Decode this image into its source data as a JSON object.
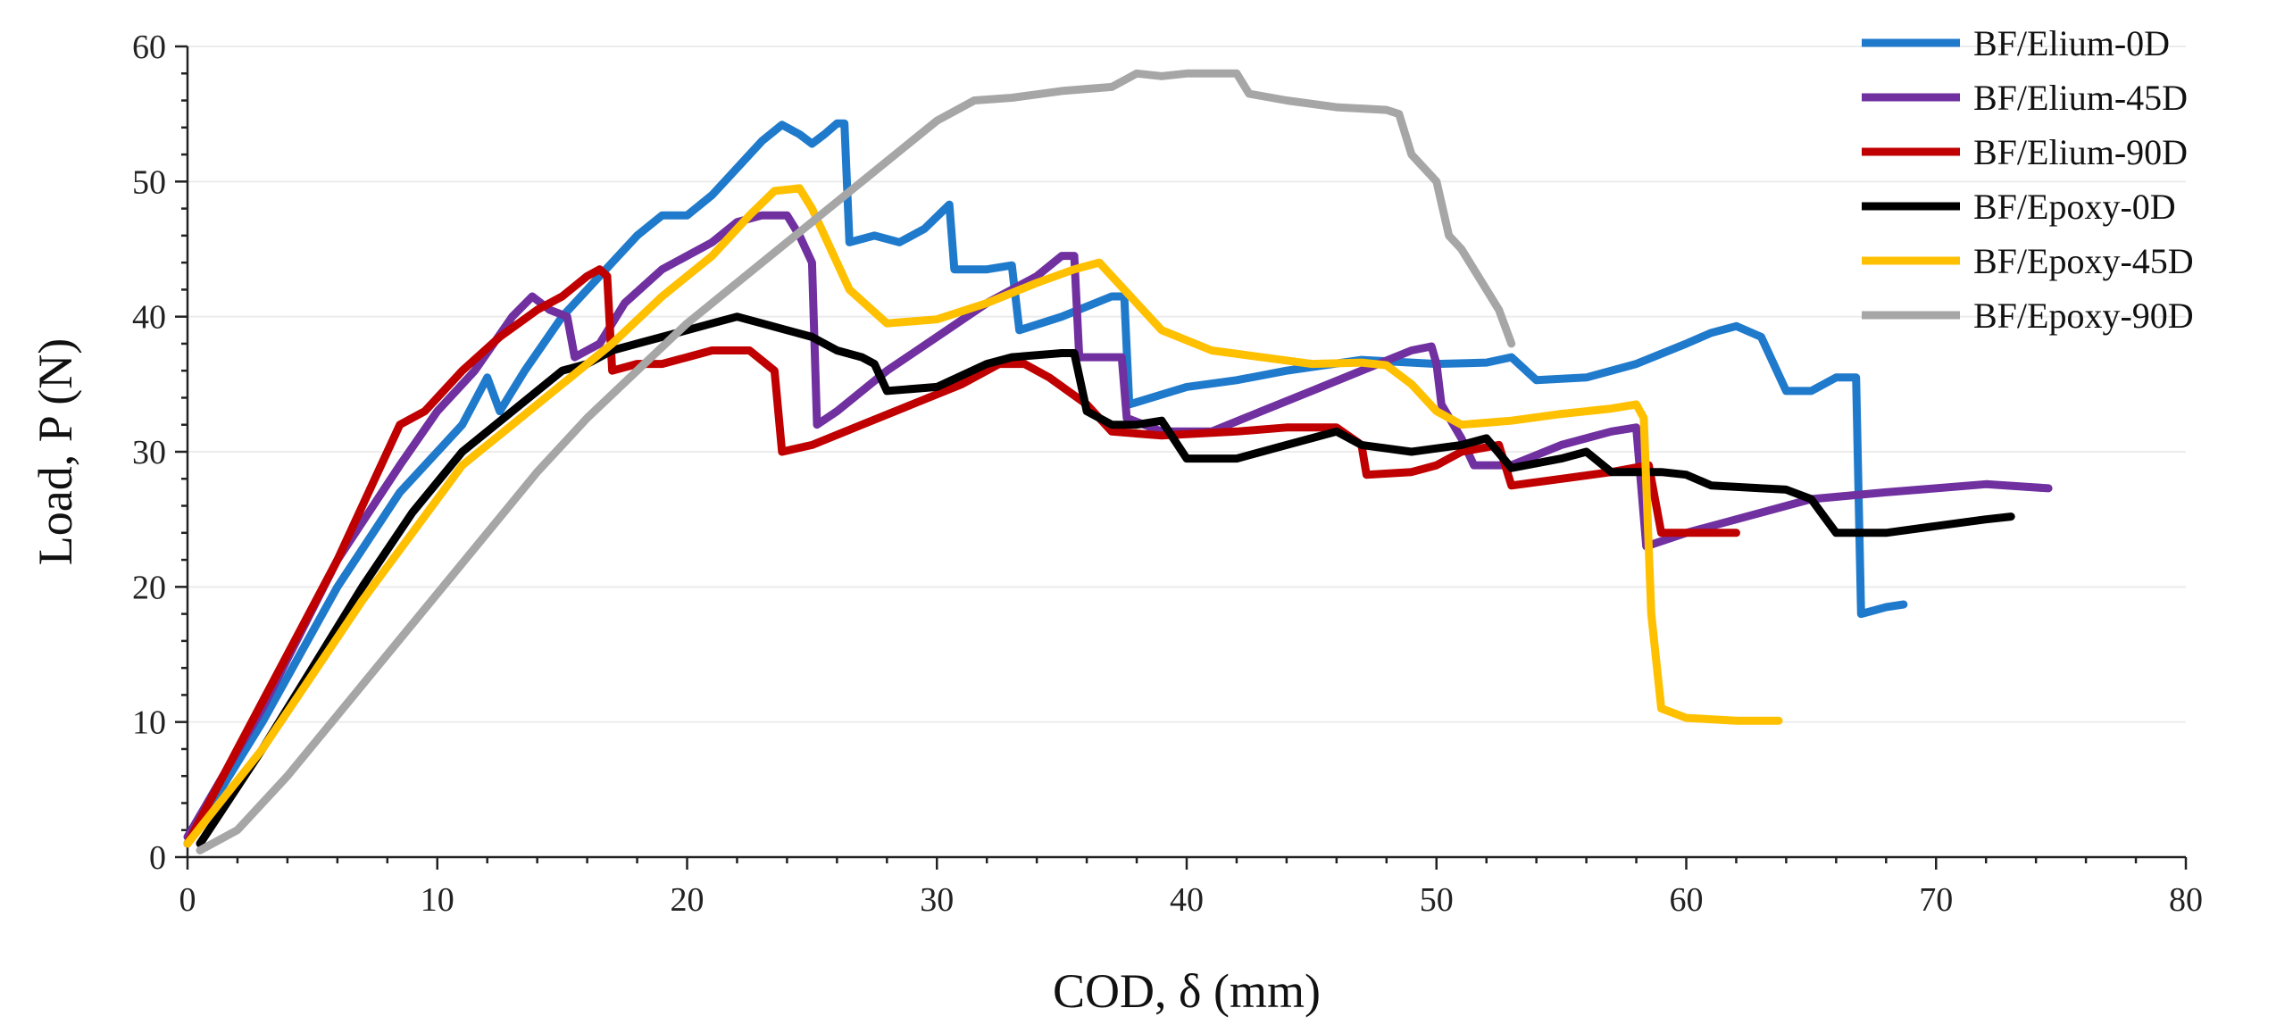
{
  "chart_data": {
    "type": "line",
    "title": "",
    "xlabel": "COD, δ (mm)",
    "ylabel": "Load, P (N)",
    "xlim": [
      0,
      80
    ],
    "ylim": [
      0,
      60
    ],
    "x_ticks": [
      0,
      10,
      20,
      30,
      40,
      50,
      60,
      70,
      80
    ],
    "y_ticks": [
      0,
      10,
      20,
      30,
      40,
      50,
      60
    ],
    "grid": "horizontal",
    "legend_position": "top-right",
    "series": [
      {
        "name": "BF/Elium-0D",
        "color": "#1f7acc",
        "points": [
          [
            0,
            1
          ],
          [
            3,
            10
          ],
          [
            6,
            20
          ],
          [
            8.5,
            27
          ],
          [
            10,
            30
          ],
          [
            11,
            32
          ],
          [
            12,
            35.5
          ],
          [
            12.5,
            33
          ],
          [
            13.5,
            36
          ],
          [
            15,
            40
          ],
          [
            17,
            44
          ],
          [
            18,
            46
          ],
          [
            19,
            47.5
          ],
          [
            20,
            47.5
          ],
          [
            21,
            49
          ],
          [
            22,
            51
          ],
          [
            23,
            53
          ],
          [
            23.8,
            54.2
          ],
          [
            24.5,
            53.5
          ],
          [
            25,
            52.8
          ],
          [
            25.5,
            53.5
          ],
          [
            26,
            54.3
          ],
          [
            26.3,
            54.3
          ],
          [
            26.5,
            45.5
          ],
          [
            27.5,
            46
          ],
          [
            28.5,
            45.5
          ],
          [
            29.5,
            46.5
          ],
          [
            30.5,
            48.3
          ],
          [
            30.7,
            43.5
          ],
          [
            32,
            43.5
          ],
          [
            33,
            43.8
          ],
          [
            33.3,
            39
          ],
          [
            35,
            40
          ],
          [
            37,
            41.5
          ],
          [
            37.5,
            41.5
          ],
          [
            37.7,
            33.5
          ],
          [
            40,
            34.8
          ],
          [
            42,
            35.3
          ],
          [
            44,
            36
          ],
          [
            47,
            36.8
          ],
          [
            50,
            36.5
          ],
          [
            52,
            36.6
          ],
          [
            53,
            37
          ],
          [
            54,
            35.3
          ],
          [
            56,
            35.5
          ],
          [
            58,
            36.5
          ],
          [
            60,
            38
          ],
          [
            61,
            38.8
          ],
          [
            62,
            39.3
          ],
          [
            63,
            38.5
          ],
          [
            63.5,
            36.5
          ],
          [
            64,
            34.5
          ],
          [
            65,
            34.5
          ],
          [
            66,
            35.5
          ],
          [
            66.8,
            35.5
          ],
          [
            67,
            18
          ],
          [
            68,
            18.5
          ],
          [
            68.7,
            18.7
          ]
        ]
      },
      {
        "name": "BF/Elium-45D",
        "color": "#7030a0",
        "points": [
          [
            0,
            1.5
          ],
          [
            3,
            11
          ],
          [
            6,
            22
          ],
          [
            8.5,
            29
          ],
          [
            10,
            33
          ],
          [
            11.5,
            36
          ],
          [
            13,
            40
          ],
          [
            13.8,
            41.5
          ],
          [
            14.5,
            40.5
          ],
          [
            15.2,
            40
          ],
          [
            15.5,
            37
          ],
          [
            16.5,
            38
          ],
          [
            17.5,
            41
          ],
          [
            19,
            43.5
          ],
          [
            21,
            45.5
          ],
          [
            22,
            47
          ],
          [
            23,
            47.5
          ],
          [
            24,
            47.5
          ],
          [
            24.5,
            46
          ],
          [
            25,
            44
          ],
          [
            25.2,
            32
          ],
          [
            26,
            33
          ],
          [
            28,
            36
          ],
          [
            30,
            38.5
          ],
          [
            32,
            41
          ],
          [
            34,
            43
          ],
          [
            35,
            44.5
          ],
          [
            35.5,
            44.5
          ],
          [
            35.7,
            37
          ],
          [
            37,
            37
          ],
          [
            37.4,
            37
          ],
          [
            37.6,
            32.5
          ],
          [
            39,
            31.5
          ],
          [
            41,
            31.5
          ],
          [
            43,
            33
          ],
          [
            45,
            34.5
          ],
          [
            47,
            36
          ],
          [
            49,
            37.5
          ],
          [
            49.8,
            37.8
          ],
          [
            50,
            36.5
          ],
          [
            50.2,
            33.5
          ],
          [
            51,
            31
          ],
          [
            51.5,
            29
          ],
          [
            53,
            29
          ],
          [
            55,
            30.5
          ],
          [
            57,
            31.5
          ],
          [
            58,
            31.8
          ],
          [
            58.4,
            23
          ],
          [
            60,
            24
          ],
          [
            62,
            25
          ],
          [
            65,
            26.5
          ],
          [
            68,
            27
          ],
          [
            70,
            27.3
          ],
          [
            72,
            27.6
          ],
          [
            74.5,
            27.3
          ]
        ]
      },
      {
        "name": "BF/Elium-90D",
        "color": "#c00000",
        "points": [
          [
            0,
            1
          ],
          [
            2,
            8
          ],
          [
            4,
            15
          ],
          [
            6,
            22
          ],
          [
            7.5,
            28
          ],
          [
            8.5,
            32
          ],
          [
            9.5,
            33
          ],
          [
            11,
            36
          ],
          [
            12.5,
            38.5
          ],
          [
            14,
            40.5
          ],
          [
            15,
            41.5
          ],
          [
            16,
            43
          ],
          [
            16.5,
            43.5
          ],
          [
            16.8,
            43
          ],
          [
            17,
            36
          ],
          [
            18,
            36.5
          ],
          [
            19,
            36.5
          ],
          [
            20,
            37
          ],
          [
            21,
            37.5
          ],
          [
            22.5,
            37.5
          ],
          [
            23.5,
            36
          ],
          [
            23.8,
            30
          ],
          [
            25,
            30.5
          ],
          [
            27,
            32
          ],
          [
            29,
            33.5
          ],
          [
            31,
            35
          ],
          [
            32.5,
            36.5
          ],
          [
            33.5,
            36.5
          ],
          [
            34.5,
            35.5
          ],
          [
            36,
            33.5
          ],
          [
            37,
            31.5
          ],
          [
            39,
            31.2
          ],
          [
            42,
            31.5
          ],
          [
            44,
            31.8
          ],
          [
            46,
            31.8
          ],
          [
            47,
            30.5
          ],
          [
            47.2,
            28.3
          ],
          [
            49,
            28.5
          ],
          [
            50,
            29
          ],
          [
            51,
            30
          ],
          [
            52.5,
            30.5
          ],
          [
            53,
            27.5
          ],
          [
            55,
            28
          ],
          [
            57,
            28.5
          ],
          [
            58.5,
            29
          ],
          [
            59,
            24
          ],
          [
            60,
            24
          ],
          [
            62,
            24
          ]
        ]
      },
      {
        "name": "BF/Epoxy-0D",
        "color": "#000000",
        "points": [
          [
            0.5,
            1
          ],
          [
            3,
            8
          ],
          [
            5,
            14
          ],
          [
            7,
            20
          ],
          [
            9,
            25.5
          ],
          [
            11,
            30
          ],
          [
            13,
            33
          ],
          [
            15,
            36
          ],
          [
            16,
            36.5
          ],
          [
            17,
            37.5
          ],
          [
            18,
            38
          ],
          [
            19,
            38.5
          ],
          [
            20,
            39
          ],
          [
            21,
            39.5
          ],
          [
            22,
            40
          ],
          [
            23,
            39.5
          ],
          [
            24,
            39
          ],
          [
            25,
            38.5
          ],
          [
            26,
            37.5
          ],
          [
            27,
            37
          ],
          [
            27.5,
            36.5
          ],
          [
            28,
            34.5
          ],
          [
            30,
            34.8
          ],
          [
            32,
            36.5
          ],
          [
            33,
            37
          ],
          [
            35,
            37.3
          ],
          [
            35.5,
            37.3
          ],
          [
            36,
            33
          ],
          [
            37,
            32
          ],
          [
            38,
            32
          ],
          [
            39,
            32.3
          ],
          [
            40,
            29.5
          ],
          [
            42,
            29.5
          ],
          [
            44,
            30.5
          ],
          [
            46,
            31.5
          ],
          [
            47,
            30.5
          ],
          [
            49,
            30
          ],
          [
            51,
            30.5
          ],
          [
            52,
            31
          ],
          [
            53,
            28.8
          ],
          [
            55,
            29.5
          ],
          [
            56,
            30
          ],
          [
            57,
            28.5
          ],
          [
            59,
            28.5
          ],
          [
            60,
            28.3
          ],
          [
            61,
            27.5
          ],
          [
            63,
            27.3
          ],
          [
            64,
            27.2
          ],
          [
            65,
            26.5
          ],
          [
            66,
            24
          ],
          [
            68,
            24
          ],
          [
            70,
            24.5
          ],
          [
            72,
            25
          ],
          [
            73,
            25.2
          ]
        ]
      },
      {
        "name": "BF/Epoxy-45D",
        "color": "#ffc000",
        "points": [
          [
            0,
            1
          ],
          [
            3,
            8
          ],
          [
            5,
            13.5
          ],
          [
            7,
            19
          ],
          [
            9,
            24
          ],
          [
            11,
            29
          ],
          [
            13,
            32
          ],
          [
            15,
            35
          ],
          [
            17,
            38
          ],
          [
            19,
            41.5
          ],
          [
            21,
            44.5
          ],
          [
            22.5,
            47.5
          ],
          [
            23.5,
            49.3
          ],
          [
            24.5,
            49.5
          ],
          [
            25,
            48
          ],
          [
            25.5,
            46
          ],
          [
            26.5,
            42
          ],
          [
            28,
            39.5
          ],
          [
            30,
            39.8
          ],
          [
            32,
            41
          ],
          [
            34,
            42.5
          ],
          [
            35.5,
            43.5
          ],
          [
            36.5,
            44
          ],
          [
            37.5,
            42
          ],
          [
            39,
            39
          ],
          [
            41,
            37.5
          ],
          [
            43,
            37
          ],
          [
            45,
            36.5
          ],
          [
            47,
            36.6
          ],
          [
            48,
            36.4
          ],
          [
            49,
            35
          ],
          [
            50,
            33
          ],
          [
            51,
            32
          ],
          [
            53,
            32.3
          ],
          [
            55,
            32.8
          ],
          [
            57,
            33.2
          ],
          [
            58,
            33.5
          ],
          [
            58.3,
            32.5
          ],
          [
            58.6,
            18
          ],
          [
            59,
            11
          ],
          [
            60,
            10.3
          ],
          [
            62,
            10.1
          ],
          [
            63.7,
            10.1
          ]
        ]
      },
      {
        "name": "BF/Epoxy-90D",
        "color": "#a6a6a6",
        "points": [
          [
            0.5,
            0.5
          ],
          [
            2,
            2
          ],
          [
            4,
            6
          ],
          [
            6,
            10.5
          ],
          [
            8,
            15
          ],
          [
            10,
            19.5
          ],
          [
            12,
            24
          ],
          [
            14,
            28.5
          ],
          [
            16,
            32.5
          ],
          [
            18,
            36
          ],
          [
            20,
            39.5
          ],
          [
            22,
            42.5
          ],
          [
            24,
            45.5
          ],
          [
            26,
            48.5
          ],
          [
            28,
            51.5
          ],
          [
            30,
            54.5
          ],
          [
            31.5,
            56
          ],
          [
            33,
            56.2
          ],
          [
            35,
            56.7
          ],
          [
            37,
            57
          ],
          [
            38,
            58
          ],
          [
            39,
            57.8
          ],
          [
            40,
            58
          ],
          [
            41,
            58
          ],
          [
            42,
            58
          ],
          [
            42.5,
            56.5
          ],
          [
            44,
            56
          ],
          [
            46,
            55.5
          ],
          [
            48,
            55.3
          ],
          [
            48.5,
            55
          ],
          [
            49,
            52
          ],
          [
            50,
            50
          ],
          [
            50.5,
            46
          ],
          [
            51,
            45
          ],
          [
            52,
            42
          ],
          [
            52.5,
            40.5
          ],
          [
            53,
            38
          ]
        ]
      }
    ]
  }
}
